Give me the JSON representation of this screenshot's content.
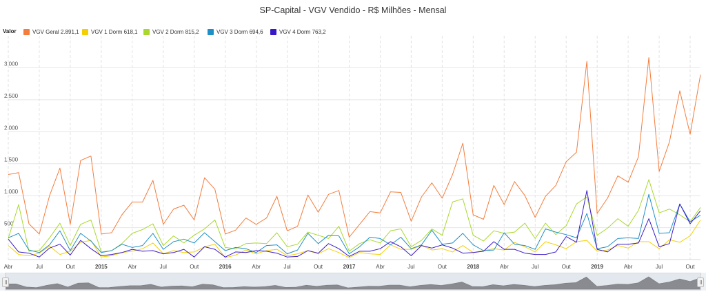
{
  "chart_data": {
    "type": "line",
    "title": "SP-Capital - VGV Vendido - R$ Milhões - Mensal",
    "legend_title": "Valor",
    "legend_position": "top-left",
    "grid": true,
    "ylim": [
      0,
      3500
    ],
    "y_ticks": [
      500,
      1000,
      1500,
      2000,
      2500,
      3000
    ],
    "y_tick_labels": [
      "500",
      "1.000",
      "1.500",
      "2.000",
      "2.500",
      "3.000"
    ],
    "x_start": "2014-04",
    "x_ticks": [
      {
        "i": 0,
        "label": "Abr",
        "bold": false
      },
      {
        "i": 3,
        "label": "Jul",
        "bold": false
      },
      {
        "i": 6,
        "label": "Out",
        "bold": false
      },
      {
        "i": 9,
        "label": "2015",
        "bold": true
      },
      {
        "i": 12,
        "label": "Abr",
        "bold": false
      },
      {
        "i": 15,
        "label": "Jul",
        "bold": false
      },
      {
        "i": 18,
        "label": "Out",
        "bold": false
      },
      {
        "i": 21,
        "label": "2016",
        "bold": true
      },
      {
        "i": 24,
        "label": "Abr",
        "bold": false
      },
      {
        "i": 27,
        "label": "Jul",
        "bold": false
      },
      {
        "i": 30,
        "label": "Out",
        "bold": false
      },
      {
        "i": 33,
        "label": "2017",
        "bold": true
      },
      {
        "i": 36,
        "label": "Abr",
        "bold": false
      },
      {
        "i": 39,
        "label": "Jul",
        "bold": false
      },
      {
        "i": 42,
        "label": "Out",
        "bold": false
      },
      {
        "i": 45,
        "label": "2018",
        "bold": true
      },
      {
        "i": 48,
        "label": "Abr",
        "bold": false
      },
      {
        "i": 51,
        "label": "Jul",
        "bold": false
      },
      {
        "i": 54,
        "label": "Out",
        "bold": false
      },
      {
        "i": 57,
        "label": "2019",
        "bold": true
      },
      {
        "i": 60,
        "label": "Abr",
        "bold": false
      },
      {
        "i": 63,
        "label": "Jul",
        "bold": false
      },
      {
        "i": 66,
        "label": "Out",
        "bold": false
      }
    ],
    "series": [
      {
        "name": "VGV Geral",
        "last_value": "2.891,1",
        "color": "#f47c3c",
        "values": [
          1330,
          1360,
          560,
          400,
          1000,
          1430,
          550,
          1550,
          1620,
          400,
          420,
          700,
          900,
          900,
          1240,
          550,
          790,
          850,
          620,
          1280,
          1100,
          400,
          460,
          650,
          550,
          650,
          990,
          450,
          520,
          1010,
          740,
          1020,
          1080,
          350,
          550,
          750,
          730,
          1060,
          1050,
          600,
          980,
          1200,
          960,
          1330,
          1820,
          700,
          630,
          1160,
          860,
          1220,
          1000,
          660,
          990,
          1160,
          1530,
          1680,
          3100,
          720,
          960,
          1310,
          1210,
          1610,
          3160,
          1380,
          1840,
          2640,
          1960,
          2891
        ]
      },
      {
        "name": "VGV 1 Dorm",
        "last_value": "618,1",
        "color": "#f5d000",
        "values": [
          220,
          80,
          60,
          100,
          210,
          80,
          130,
          270,
          300,
          40,
          60,
          110,
          130,
          170,
          260,
          90,
          140,
          110,
          120,
          200,
          240,
          30,
          70,
          150,
          90,
          140,
          160,
          60,
          90,
          140,
          90,
          170,
          110,
          30,
          110,
          90,
          80,
          230,
          160,
          160,
          220,
          150,
          170,
          120,
          220,
          110,
          140,
          170,
          150,
          270,
          200,
          120,
          280,
          230,
          170,
          280,
          300,
          130,
          150,
          220,
          180,
          280,
          280,
          170,
          310,
          270,
          370,
          618
        ]
      },
      {
        "name": "VGV 2 Dorm",
        "last_value": "815,2",
        "color": "#a8d82c",
        "values": [
          330,
          860,
          130,
          140,
          340,
          570,
          220,
          550,
          620,
          120,
          140,
          250,
          410,
          470,
          560,
          220,
          370,
          260,
          380,
          480,
          620,
          190,
          170,
          250,
          260,
          250,
          420,
          200,
          240,
          430,
          380,
          330,
          520,
          130,
          250,
          310,
          260,
          450,
          480,
          200,
          300,
          480,
          380,
          900,
          950,
          380,
          290,
          450,
          410,
          430,
          570,
          330,
          570,
          390,
          530,
          870,
          980,
          380,
          490,
          640,
          520,
          770,
          1250,
          730,
          790,
          700,
          590,
          815
        ]
      },
      {
        "name": "VGV 3 Dorm",
        "last_value": "694,6",
        "color": "#1f8fc8",
        "values": [
          340,
          410,
          150,
          110,
          230,
          450,
          140,
          410,
          290,
          110,
          140,
          240,
          190,
          220,
          410,
          160,
          280,
          320,
          260,
          420,
          280,
          140,
          190,
          170,
          110,
          220,
          230,
          90,
          150,
          410,
          250,
          380,
          370,
          90,
          200,
          350,
          330,
          230,
          350,
          170,
          230,
          460,
          240,
          260,
          410,
          230,
          140,
          150,
          420,
          240,
          220,
          160,
          480,
          430,
          390,
          340,
          720,
          170,
          200,
          330,
          340,
          330,
          1020,
          410,
          420,
          870,
          590,
          694
        ]
      },
      {
        "name": "VGV 4 Dorm",
        "last_value": "763,2",
        "color": "#3a18c8",
        "values": [
          320,
          120,
          100,
          40,
          180,
          240,
          70,
          300,
          170,
          60,
          80,
          110,
          160,
          130,
          140,
          90,
          110,
          160,
          40,
          200,
          160,
          40,
          120,
          110,
          140,
          130,
          100,
          40,
          50,
          140,
          100,
          250,
          170,
          50,
          130,
          130,
          170,
          280,
          200,
          60,
          220,
          180,
          230,
          180,
          100,
          110,
          130,
          280,
          160,
          160,
          100,
          80,
          80,
          120,
          360,
          270,
          1080,
          160,
          120,
          240,
          240,
          260,
          640,
          200,
          250,
          870,
          560,
          763
        ]
      }
    ]
  },
  "navigator": {
    "overview_values": [
      1330,
      1360,
      560,
      400,
      1000,
      1430,
      550,
      1550,
      1620,
      400,
      420,
      700,
      900,
      900,
      1240,
      550,
      790,
      850,
      620,
      1280,
      1100,
      400,
      460,
      650,
      550,
      650,
      990,
      450,
      520,
      1010,
      740,
      1020,
      1080,
      350,
      550,
      750,
      730,
      1060,
      1050,
      600,
      980,
      1200,
      960,
      1330,
      1820,
      700,
      630,
      1160,
      860,
      1220,
      1000,
      660,
      990,
      1160,
      1530,
      1680,
      3100,
      720,
      960,
      1310,
      1210,
      1610,
      3160,
      1380,
      1840,
      2640,
      1960,
      2891
    ]
  }
}
